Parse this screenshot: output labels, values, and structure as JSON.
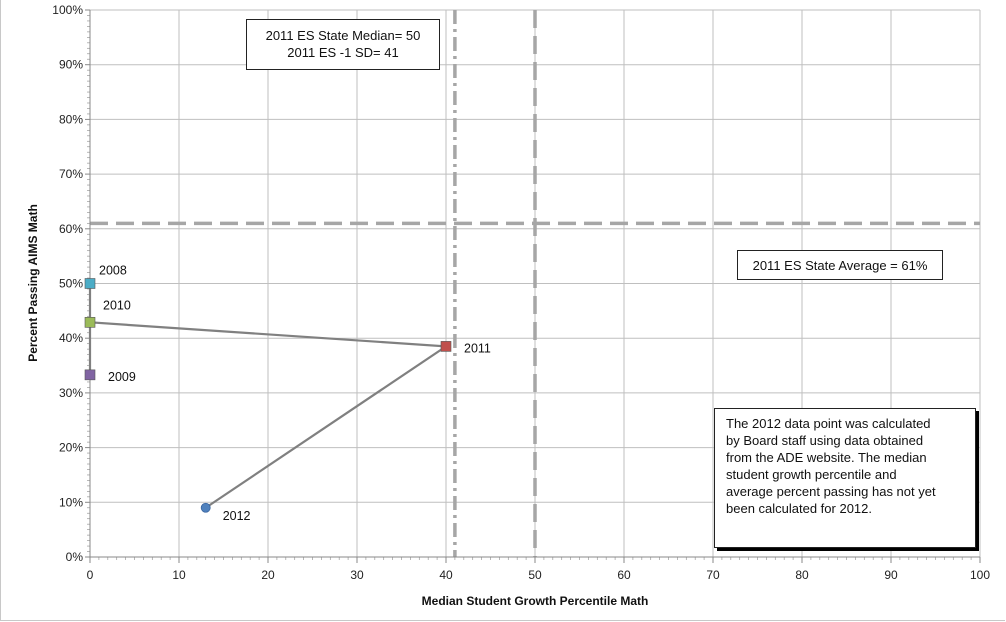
{
  "chart_data": {
    "type": "scatter",
    "xlabel": "Median Student Growth Percentile Math",
    "ylabel": "Percent Passing AIMS Math",
    "xlim": [
      0,
      100
    ],
    "ylim": [
      0,
      100
    ],
    "x_ticks": [
      "0",
      "10",
      "20",
      "30",
      "40",
      "50",
      "60",
      "70",
      "80",
      "90",
      "100"
    ],
    "y_ticks": [
      "0%",
      "10%",
      "20%",
      "30%",
      "40%",
      "50%",
      "60%",
      "70%",
      "80%",
      "90%",
      "100%"
    ],
    "grid": true,
    "points": [
      {
        "label": "2008",
        "x": 0,
        "y": 50,
        "marker": "square",
        "color": "#4bacc6"
      },
      {
        "label": "2009",
        "x": 0,
        "y": 33.3,
        "marker": "square",
        "color": "#8064a2"
      },
      {
        "label": "2010",
        "x": 0,
        "y": 42.9,
        "marker": "square",
        "color": "#9bbb59"
      },
      {
        "label": "2011",
        "x": 40,
        "y": 38.5,
        "marker": "square",
        "color": "#c0504d"
      },
      {
        "label": "2012",
        "x": 13,
        "y": 9,
        "marker": "circle",
        "color": "#4f81bd"
      }
    ],
    "connecting_line": {
      "order": [
        "2008",
        "2009",
        "2010",
        "2011",
        "2012"
      ],
      "color": "#808080"
    },
    "reference_lines": [
      {
        "orientation": "horizontal",
        "value": 61,
        "style": "dashed",
        "color": "#a6a6a6"
      },
      {
        "orientation": "vertical",
        "value": 41,
        "style": "dash-dot",
        "color": "#a6a6a6"
      },
      {
        "orientation": "vertical",
        "value": 50,
        "style": "dashed",
        "color": "#a6a6a6"
      }
    ],
    "annotations": {
      "median_lines": [
        "2011 ES State Median= 50",
        "2011 ES -1 SD= 41"
      ],
      "average": "2011 ES State Average = 61%",
      "note_lines": [
        "The 2012 data point was calculated",
        "by Board staff using data obtained",
        "from the ADE website.  The median",
        "student growth percentile and",
        "average percent passing has not yet",
        "been calculated for 2012."
      ]
    }
  }
}
